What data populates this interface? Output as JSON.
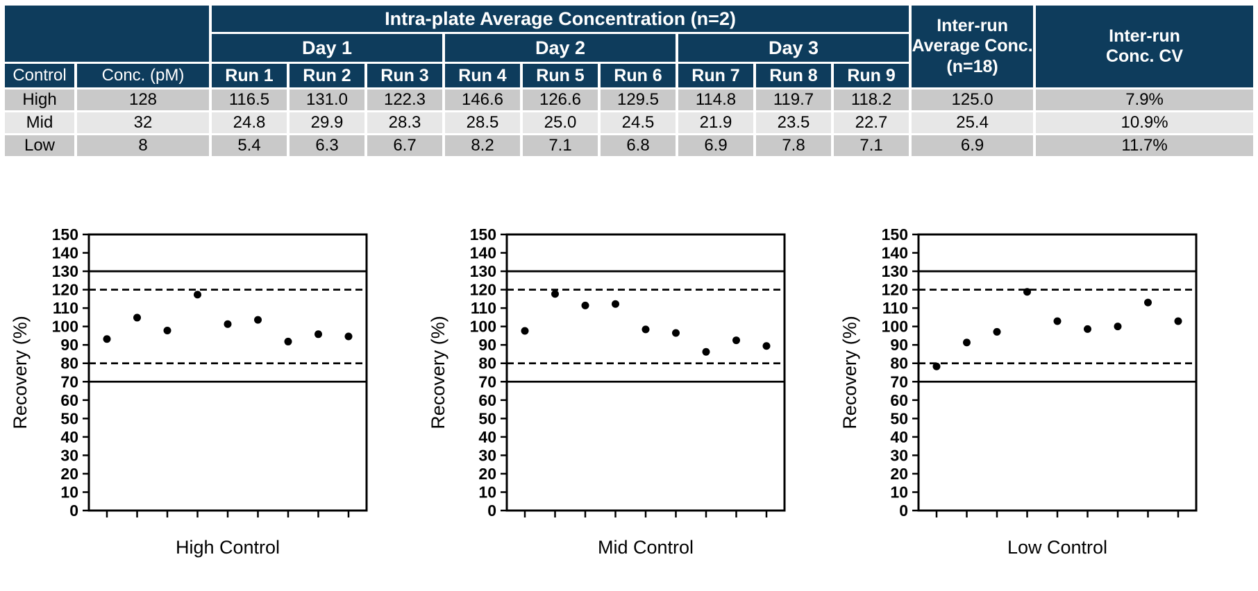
{
  "colors": {
    "header_bg": "#0e3c5c",
    "header_text": "#ffffff",
    "row_dark": "#c9c9c9",
    "row_light": "#e7e7e7",
    "data_text": "#000000",
    "plot_color": "#000000"
  },
  "table": {
    "header": {
      "intra_plate": "Intra-plate Average Concentration (n=2)",
      "days": [
        "Day 1",
        "Day 2",
        "Day 3"
      ],
      "runs": [
        "Run 1",
        "Run 2",
        "Run 3",
        "Run 4",
        "Run 5",
        "Run 6",
        "Run 7",
        "Run 8",
        "Run 9"
      ],
      "control": "Control",
      "conc": "Conc. (pM)",
      "inter_avg_lines": [
        "Inter-run",
        "Average Conc.",
        "(n=18)"
      ],
      "inter_cv_lines": [
        "Inter-run",
        "Conc. CV"
      ]
    },
    "rows": [
      {
        "control": "High",
        "conc": "128",
        "runs": [
          "116.5",
          "131.0",
          "122.3",
          "146.6",
          "126.6",
          "129.5",
          "114.8",
          "119.7",
          "118.2"
        ],
        "avg": "125.0",
        "cv": "7.9%"
      },
      {
        "control": "Mid",
        "conc": "32",
        "runs": [
          "24.8",
          "29.9",
          "28.3",
          "28.5",
          "25.0",
          "24.5",
          "21.9",
          "23.5",
          "22.7"
        ],
        "avg": "25.4",
        "cv": "10.9%"
      },
      {
        "control": "Low",
        "conc": "8",
        "runs": [
          "5.4",
          "6.3",
          "6.7",
          "8.2",
          "7.1",
          "6.8",
          "6.9",
          "7.8",
          "7.1"
        ],
        "avg": "6.9",
        "cv": "11.7%"
      }
    ]
  },
  "chart_data": [
    {
      "type": "scatter",
      "title": "High Control",
      "ylabel": "Recovery (%)",
      "xlabel": "",
      "ylim": [
        0,
        150
      ],
      "ytick_step": 10,
      "x": [
        1,
        2,
        3,
        4,
        5,
        6,
        7,
        8,
        9
      ],
      "values": [
        93.2,
        104.8,
        97.8,
        117.3,
        101.3,
        103.6,
        91.8,
        95.8,
        94.6
      ],
      "solid_ref_lines": [
        130,
        70
      ],
      "dashed_ref_lines": [
        120,
        80
      ],
      "marker": "circle",
      "grid": false,
      "legend": "none"
    },
    {
      "type": "scatter",
      "title": "Mid Control",
      "ylabel": "Recovery (%)",
      "xlabel": "",
      "ylim": [
        0,
        150
      ],
      "ytick_step": 10,
      "x": [
        1,
        2,
        3,
        4,
        5,
        6,
        7,
        8,
        9
      ],
      "values": [
        97.6,
        117.7,
        111.4,
        112.2,
        98.4,
        96.5,
        86.2,
        92.5,
        89.4
      ],
      "solid_ref_lines": [
        130,
        70
      ],
      "dashed_ref_lines": [
        120,
        80
      ],
      "marker": "circle",
      "grid": false,
      "legend": "none"
    },
    {
      "type": "scatter",
      "title": "Low Control",
      "ylabel": "Recovery (%)",
      "xlabel": "",
      "ylim": [
        0,
        150
      ],
      "ytick_step": 10,
      "x": [
        1,
        2,
        3,
        4,
        5,
        6,
        7,
        8,
        9
      ],
      "values": [
        78.3,
        91.3,
        97.1,
        118.8,
        102.9,
        98.6,
        100.0,
        113.0,
        102.9
      ],
      "solid_ref_lines": [
        130,
        70
      ],
      "dashed_ref_lines": [
        120,
        80
      ],
      "marker": "circle",
      "grid": false,
      "legend": "none"
    }
  ]
}
